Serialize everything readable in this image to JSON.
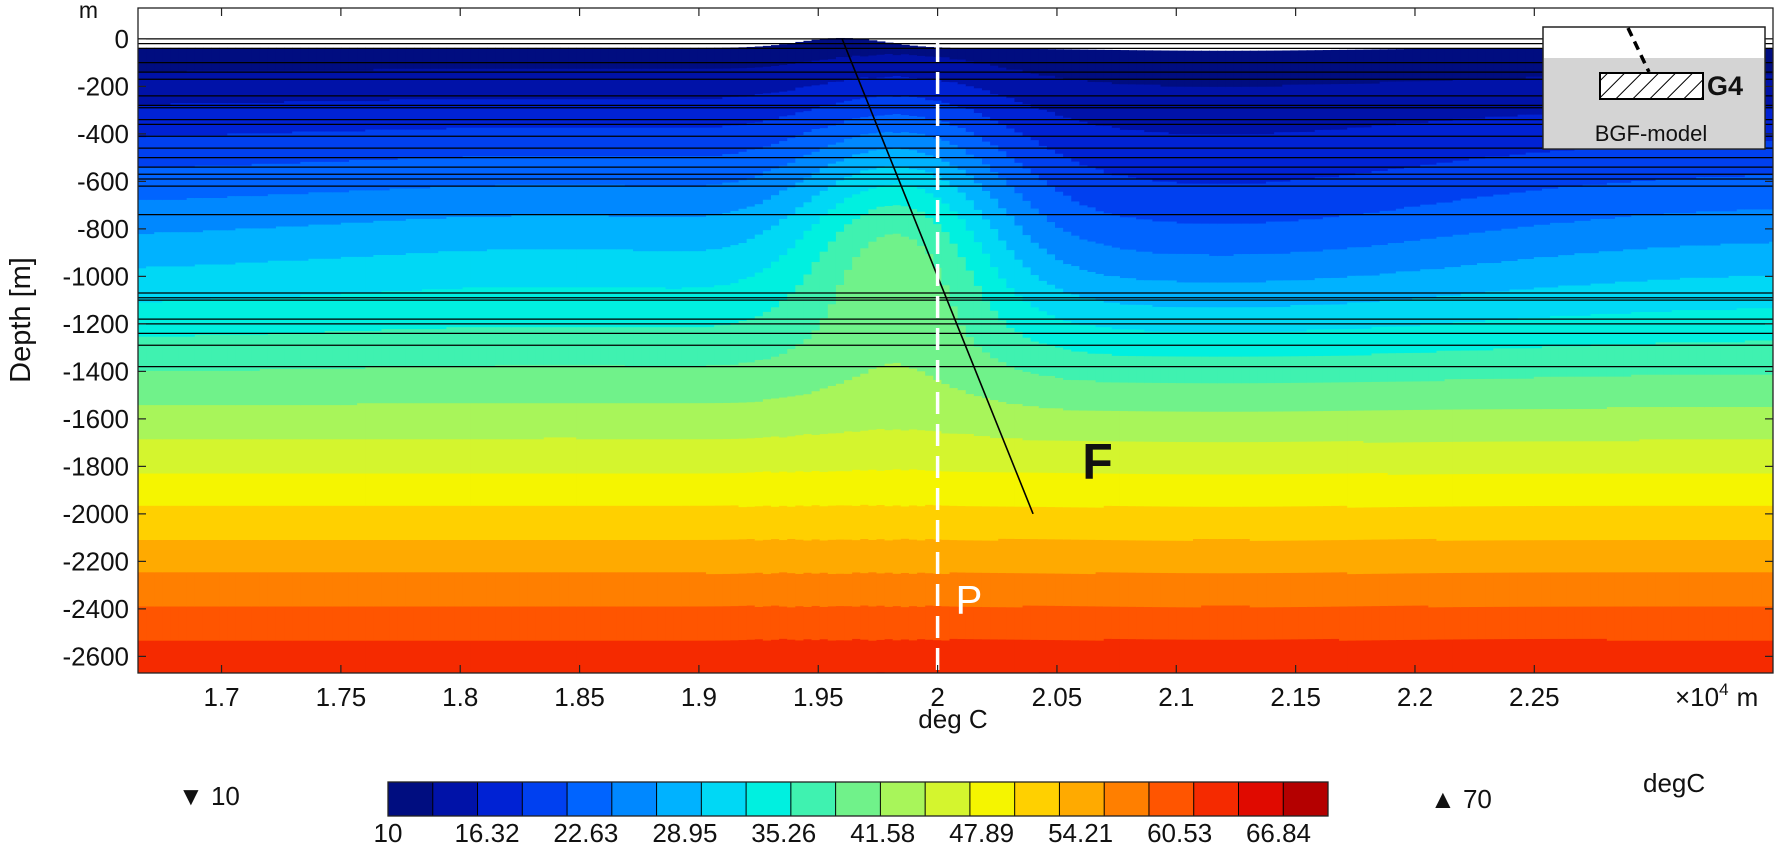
{
  "chart_data": {
    "type": "heatmap",
    "title": "",
    "xlabel": "deg C",
    "x_unit_text": "×10",
    "x_unit_exp": "4",
    "x_unit_suffix": "m",
    "ylabel": "Depth [m]",
    "y_unit": "m",
    "xlim": [
      1.665,
      2.35
    ],
    "ylim": [
      -2670,
      130
    ],
    "x_ticks": [
      1.7,
      1.75,
      1.8,
      1.85,
      1.9,
      1.95,
      2.0,
      2.05,
      2.1,
      2.15,
      2.2,
      2.25
    ],
    "x_tick_labels": [
      "1.7",
      "1.75",
      "1.8",
      "1.85",
      "1.9",
      "1.95",
      "2",
      "2.05",
      "2.1",
      "2.15",
      "2.2",
      "2.25"
    ],
    "y_ticks": [
      0,
      -200,
      -400,
      -600,
      -800,
      -1000,
      -1200,
      -1400,
      -1600,
      -1800,
      -2000,
      -2200,
      -2400,
      -2600
    ],
    "y_tick_labels": [
      "0",
      "-200",
      "-400",
      "-600",
      "-800",
      "-1000",
      "-1200",
      "-1400",
      "-1600",
      "-1800",
      "-2000",
      "-2200",
      "-2400",
      "-2600"
    ],
    "contour_levels": [
      10,
      13.16,
      16.32,
      19.47,
      22.63,
      25.79,
      28.95,
      32.11,
      35.26,
      38.42,
      41.58,
      44.74,
      47.89,
      51.05,
      54.21,
      57.37,
      60.53,
      63.68,
      66.84,
      70
    ],
    "colorbar": {
      "min": 10,
      "max": 70,
      "label": "degC",
      "min_label": "▼ 10",
      "max_label": "▲ 70",
      "tick_labels": [
        "10",
        "16.32",
        "22.63",
        "28.95",
        "35.26",
        "41.58",
        "47.89",
        "54.21",
        "60.53",
        "66.84"
      ],
      "colors": [
        "#000d80",
        "#0012a8",
        "#0022d4",
        "#0040f0",
        "#0064ff",
        "#0088ff",
        "#00b2ff",
        "#00d8f5",
        "#00f0e0",
        "#3ff2b0",
        "#70f28a",
        "#a8f55a",
        "#d4f52e",
        "#f5f500",
        "#ffd000",
        "#ffaa00",
        "#ff7f00",
        "#ff5500",
        "#f52a00",
        "#e00a00",
        "#b40000"
      ]
    },
    "layer_boundaries_depth": [
      0,
      -20,
      -40,
      -100,
      -140,
      -170,
      -240,
      -280,
      -290,
      -340,
      -360,
      -410,
      -460,
      -500,
      -540,
      -570,
      -590,
      -620,
      -740,
      -1070,
      -1090,
      -1100,
      -1180,
      -1200,
      -1240,
      -1290,
      -1380
    ],
    "fault": {
      "label": "F",
      "from": [
        1.96,
        0
      ],
      "to": [
        2.04,
        -2000
      ]
    },
    "profile": {
      "label": "P",
      "x": 2.0
    },
    "inset": {
      "title": "G4",
      "subtitle": "BGF-model"
    }
  }
}
